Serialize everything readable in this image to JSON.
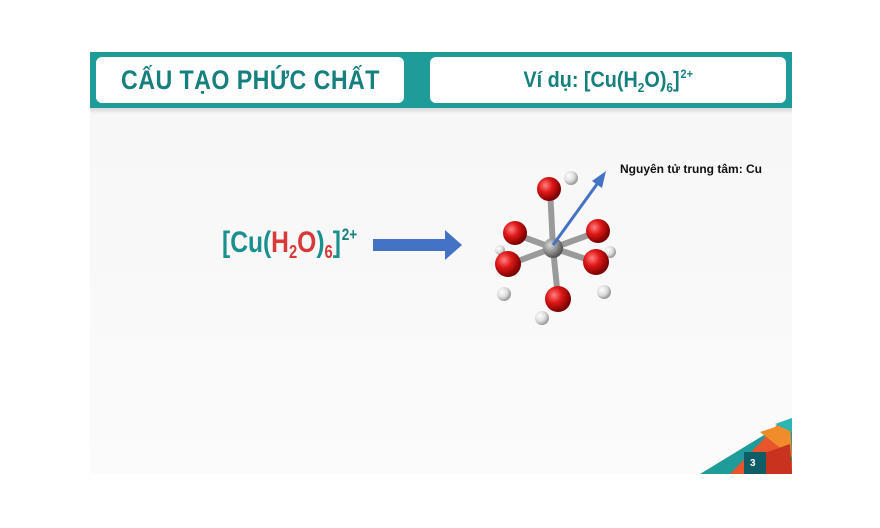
{
  "header": {
    "left_title": "CẤU TẠO PHỨC CHẤT",
    "right_title": {
      "prefix": "Ví dụ: [Cu(H",
      "sub2": "2",
      "mid": "O)",
      "sub6": "6",
      "bracket": "]",
      "charge": "2+"
    }
  },
  "formula": {
    "open": "[Cu(",
    "h": "H",
    "h_sub": "2",
    "o": "O",
    "close_paren": ")",
    "count": "6",
    "close_bracket": "]",
    "charge": "2+"
  },
  "molecule": {
    "center_label": "Nguyên tử trung tâm: Cu"
  },
  "footer": {
    "page_number": "3"
  },
  "colors": {
    "header_teal": "#1f9c9a",
    "formula_teal": "#1a918f",
    "formula_red": "#d83a3a",
    "arrow_blue": "#4472c4",
    "oxygen": "#d81e1e",
    "copper": "#8a8a8a"
  }
}
